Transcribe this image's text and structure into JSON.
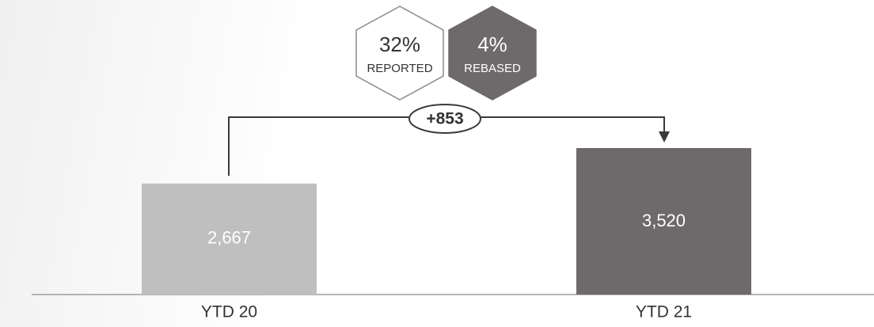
{
  "chart_data": {
    "type": "bar",
    "categories": [
      "YTD 20",
      "YTD 21"
    ],
    "values": [
      2667,
      3520
    ],
    "value_labels": [
      "2,667",
      "3,520"
    ],
    "colors": [
      "#bfbfbf",
      "#6e6a6b"
    ],
    "difference_label": "+853",
    "badges": [
      {
        "label": "32%",
        "text": "REPORTED",
        "color": "#ffffff"
      },
      {
        "label": "4%",
        "text": "REBASED",
        "color": "#6e6a6b"
      }
    ]
  }
}
